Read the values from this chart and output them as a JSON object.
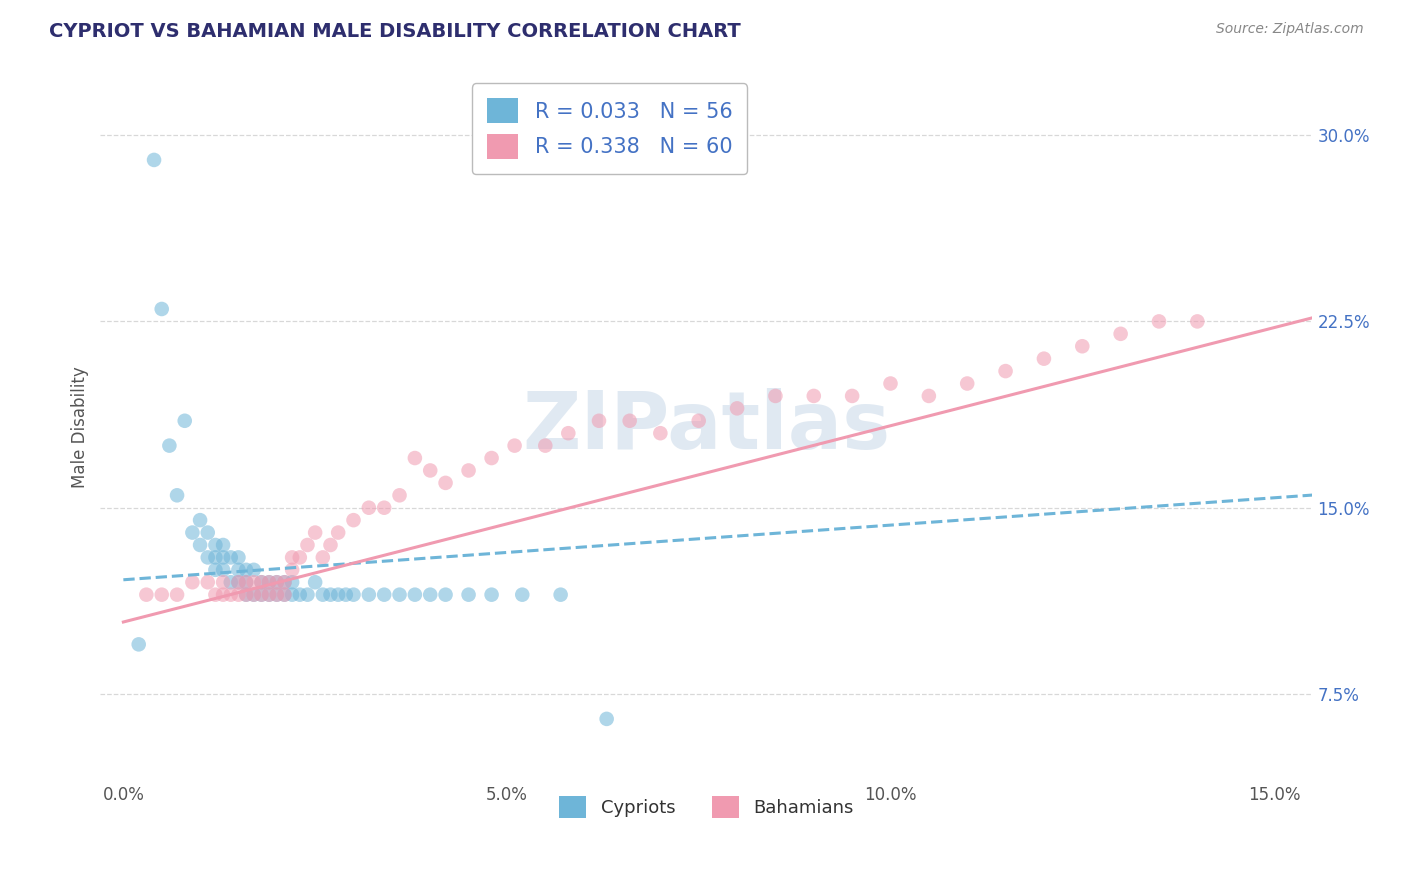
{
  "title": "CYPRIOT VS BAHAMIAN MALE DISABILITY CORRELATION CHART",
  "source": "Source: ZipAtlas.com",
  "ylabel": "Male Disability",
  "xlim": [
    -0.003,
    0.155
  ],
  "ylim": [
    0.04,
    0.325
  ],
  "yticks": [
    0.075,
    0.15,
    0.225,
    0.3
  ],
  "ytick_labels": [
    "7.5%",
    "15.0%",
    "22.5%",
    "30.0%"
  ],
  "xticks": [
    0.0,
    0.05,
    0.1,
    0.15
  ],
  "xtick_labels": [
    "0.0%",
    "5.0%",
    "10.0%",
    "15.0%"
  ],
  "cypriot_color": "#6eb5d8",
  "bahamian_color": "#f09ab0",
  "cypriot_R": 0.033,
  "cypriot_N": 56,
  "bahamian_R": 0.338,
  "bahamian_N": 60,
  "legend_labels": [
    "Cypriots",
    "Bahamians"
  ],
  "title_color": "#2e2e6e",
  "tick_color_x": "#555555",
  "tick_color_y": "#4472c4",
  "watermark": "ZIPatlas",
  "grid_color": "#d8d8d8",
  "cypriot_trendline_intercept": 0.121,
  "cypriot_trendline_slope": 0.22,
  "bahamian_trendline_intercept": 0.104,
  "bahamian_trendline_slope": 0.79,
  "cypriot_x": [
    0.002,
    0.004,
    0.005,
    0.006,
    0.007,
    0.008,
    0.009,
    0.01,
    0.01,
    0.011,
    0.011,
    0.012,
    0.012,
    0.012,
    0.013,
    0.013,
    0.013,
    0.014,
    0.014,
    0.015,
    0.015,
    0.015,
    0.016,
    0.016,
    0.016,
    0.017,
    0.017,
    0.018,
    0.018,
    0.019,
    0.019,
    0.02,
    0.02,
    0.021,
    0.021,
    0.022,
    0.022,
    0.023,
    0.024,
    0.025,
    0.026,
    0.027,
    0.028,
    0.029,
    0.03,
    0.032,
    0.034,
    0.036,
    0.038,
    0.04,
    0.042,
    0.045,
    0.048,
    0.052,
    0.057,
    0.063
  ],
  "cypriot_y": [
    0.095,
    0.29,
    0.23,
    0.175,
    0.155,
    0.185,
    0.14,
    0.135,
    0.145,
    0.13,
    0.14,
    0.125,
    0.13,
    0.135,
    0.125,
    0.13,
    0.135,
    0.12,
    0.13,
    0.12,
    0.125,
    0.13,
    0.115,
    0.12,
    0.125,
    0.115,
    0.125,
    0.115,
    0.12,
    0.115,
    0.12,
    0.115,
    0.12,
    0.115,
    0.12,
    0.115,
    0.12,
    0.115,
    0.115,
    0.12,
    0.115,
    0.115,
    0.115,
    0.115,
    0.115,
    0.115,
    0.115,
    0.115,
    0.115,
    0.115,
    0.115,
    0.115,
    0.115,
    0.115,
    0.115,
    0.065
  ],
  "bahamian_x": [
    0.003,
    0.005,
    0.007,
    0.009,
    0.011,
    0.012,
    0.013,
    0.013,
    0.014,
    0.015,
    0.015,
    0.016,
    0.016,
    0.017,
    0.017,
    0.018,
    0.018,
    0.019,
    0.019,
    0.02,
    0.02,
    0.021,
    0.021,
    0.022,
    0.022,
    0.023,
    0.024,
    0.025,
    0.026,
    0.027,
    0.028,
    0.03,
    0.032,
    0.034,
    0.036,
    0.038,
    0.04,
    0.042,
    0.045,
    0.048,
    0.051,
    0.055,
    0.058,
    0.062,
    0.066,
    0.07,
    0.075,
    0.08,
    0.085,
    0.09,
    0.095,
    0.1,
    0.105,
    0.11,
    0.115,
    0.12,
    0.125,
    0.13,
    0.135,
    0.14
  ],
  "bahamian_y": [
    0.115,
    0.115,
    0.115,
    0.12,
    0.12,
    0.115,
    0.115,
    0.12,
    0.115,
    0.115,
    0.12,
    0.115,
    0.12,
    0.115,
    0.12,
    0.115,
    0.12,
    0.115,
    0.12,
    0.115,
    0.12,
    0.115,
    0.12,
    0.125,
    0.13,
    0.13,
    0.135,
    0.14,
    0.13,
    0.135,
    0.14,
    0.145,
    0.15,
    0.15,
    0.155,
    0.17,
    0.165,
    0.16,
    0.165,
    0.17,
    0.175,
    0.175,
    0.18,
    0.185,
    0.185,
    0.18,
    0.185,
    0.19,
    0.195,
    0.195,
    0.195,
    0.2,
    0.195,
    0.2,
    0.205,
    0.21,
    0.215,
    0.22,
    0.225,
    0.225
  ]
}
